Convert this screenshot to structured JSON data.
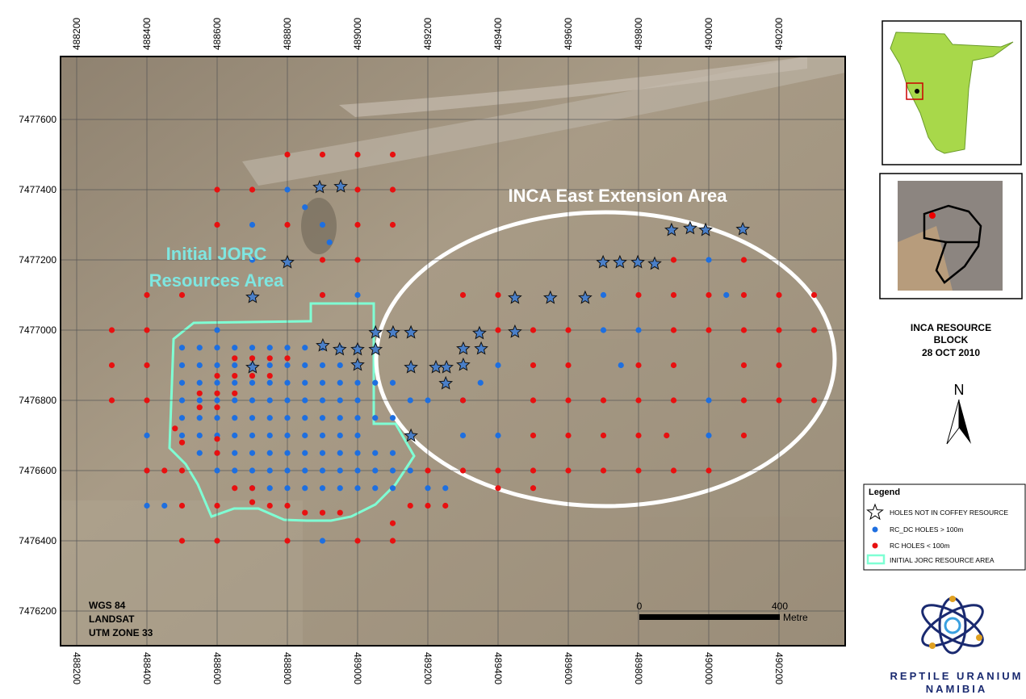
{
  "map": {
    "xticks": [
      488200,
      488400,
      488600,
      488800,
      489000,
      489200,
      489400,
      489600,
      489800,
      490000,
      490200
    ],
    "yticks": [
      7476200,
      7476400,
      7476600,
      7476800,
      7477000,
      7477200,
      7477400,
      7477600
    ],
    "annotations": {
      "east": "INCA East Extension Area",
      "jorc_line1": "Initial JORC",
      "jorc_line2": "Resources Area"
    },
    "projection": [
      "WGS 84",
      "LANDSAT",
      "UTM ZONE 33"
    ],
    "scale_bar": {
      "ticks": [
        0,
        400
      ],
      "unit": "Metre"
    },
    "holes": {
      "blue": {
        "points": [
          [
            488500,
            7476950
          ],
          [
            488550,
            7476950
          ],
          [
            488600,
            7476950
          ],
          [
            488650,
            7476950
          ],
          [
            488700,
            7476950
          ],
          [
            488750,
            7476950
          ],
          [
            488800,
            7476950
          ],
          [
            488850,
            7476950
          ],
          [
            488900,
            7476950
          ],
          [
            488950,
            7476950
          ],
          [
            489000,
            7476950
          ],
          [
            488500,
            7476900
          ],
          [
            488550,
            7476900
          ],
          [
            488600,
            7476900
          ],
          [
            488650,
            7476900
          ],
          [
            488700,
            7476900
          ],
          [
            488750,
            7476900
          ],
          [
            488800,
            7476900
          ],
          [
            488850,
            7476900
          ],
          [
            488900,
            7476900
          ],
          [
            488950,
            7476900
          ],
          [
            489000,
            7476900
          ],
          [
            488500,
            7476850
          ],
          [
            488550,
            7476850
          ],
          [
            488600,
            7476850
          ],
          [
            488650,
            7476850
          ],
          [
            488700,
            7476850
          ],
          [
            488750,
            7476850
          ],
          [
            488800,
            7476850
          ],
          [
            488850,
            7476850
          ],
          [
            488900,
            7476850
          ],
          [
            488950,
            7476850
          ],
          [
            489000,
            7476850
          ],
          [
            488500,
            7476800
          ],
          [
            488550,
            7476800
          ],
          [
            488600,
            7476800
          ],
          [
            488650,
            7476800
          ],
          [
            488700,
            7476800
          ],
          [
            488750,
            7476800
          ],
          [
            488800,
            7476800
          ],
          [
            488850,
            7476800
          ],
          [
            488900,
            7476800
          ],
          [
            488950,
            7476800
          ],
          [
            489000,
            7476800
          ],
          [
            488500,
            7476750
          ],
          [
            488550,
            7476750
          ],
          [
            488600,
            7476750
          ],
          [
            488650,
            7476750
          ],
          [
            488700,
            7476750
          ],
          [
            488750,
            7476750
          ],
          [
            488800,
            7476750
          ],
          [
            488850,
            7476750
          ],
          [
            488900,
            7476750
          ],
          [
            488950,
            7476750
          ],
          [
            489000,
            7476750
          ],
          [
            488500,
            7476700
          ],
          [
            488550,
            7476700
          ],
          [
            488600,
            7476700
          ],
          [
            488650,
            7476700
          ],
          [
            488700,
            7476700
          ],
          [
            488750,
            7476700
          ],
          [
            488800,
            7476700
          ],
          [
            488850,
            7476700
          ],
          [
            488900,
            7476700
          ],
          [
            488950,
            7476700
          ],
          [
            489000,
            7476700
          ],
          [
            488550,
            7476650
          ],
          [
            488600,
            7476650
          ],
          [
            488650,
            7476650
          ],
          [
            488700,
            7476650
          ],
          [
            488750,
            7476650
          ],
          [
            488800,
            7476650
          ],
          [
            488850,
            7476650
          ],
          [
            488900,
            7476650
          ],
          [
            488950,
            7476650
          ],
          [
            489000,
            7476650
          ],
          [
            489050,
            7476650
          ],
          [
            488600,
            7476600
          ],
          [
            488650,
            7476600
          ],
          [
            488700,
            7476600
          ],
          [
            488750,
            7476600
          ],
          [
            488800,
            7476600
          ],
          [
            488850,
            7476600
          ],
          [
            488900,
            7476600
          ],
          [
            488950,
            7476600
          ],
          [
            489000,
            7476600
          ],
          [
            489050,
            7476600
          ],
          [
            489100,
            7476600
          ],
          [
            488700,
            7476550
          ],
          [
            488750,
            7476550
          ],
          [
            488800,
            7476550
          ],
          [
            488850,
            7476550
          ],
          [
            488900,
            7476550
          ],
          [
            488950,
            7476550
          ],
          [
            489000,
            7476550
          ],
          [
            489050,
            7476550
          ],
          [
            489100,
            7476550
          ],
          [
            489050,
            7476850
          ],
          [
            489100,
            7476850
          ],
          [
            489150,
            7476800
          ],
          [
            489200,
            7476800
          ],
          [
            489050,
            7476750
          ],
          [
            489100,
            7476750
          ],
          [
            489100,
            7476650
          ],
          [
            489150,
            7476600
          ],
          [
            489200,
            7476550
          ],
          [
            489250,
            7476550
          ],
          [
            489300,
            7476700
          ],
          [
            489400,
            7476700
          ],
          [
            489400,
            7476900
          ],
          [
            489700,
            7477000
          ],
          [
            489800,
            7477000
          ],
          [
            489750,
            7476900
          ],
          [
            490000,
            7476800
          ],
          [
            490000,
            7476700
          ],
          [
            490000,
            7477200
          ],
          [
            490050,
            7477100
          ],
          [
            489700,
            7477100
          ],
          [
            488900,
            7477100
          ],
          [
            489000,
            7477100
          ],
          [
            488800,
            7477400
          ],
          [
            488850,
            7477350
          ],
          [
            488900,
            7477300
          ],
          [
            488920,
            7477250
          ],
          [
            488700,
            7477300
          ],
          [
            488700,
            7477200
          ],
          [
            488600,
            7477000
          ],
          [
            488400,
            7476700
          ],
          [
            488400,
            7476600
          ],
          [
            488400,
            7476500
          ],
          [
            488450,
            7476500
          ],
          [
            488900,
            7476400
          ],
          [
            489300,
            7476800
          ],
          [
            489350,
            7476850
          ]
        ]
      },
      "red": {
        "points": [
          [
            488800,
            7477500
          ],
          [
            488900,
            7477500
          ],
          [
            489000,
            7477500
          ],
          [
            489100,
            7477500
          ],
          [
            488600,
            7477400
          ],
          [
            488700,
            7477400
          ],
          [
            489000,
            7477400
          ],
          [
            489100,
            7477400
          ],
          [
            488600,
            7477300
          ],
          [
            488800,
            7477300
          ],
          [
            489000,
            7477300
          ],
          [
            489100,
            7477300
          ],
          [
            488900,
            7477200
          ],
          [
            489000,
            7477200
          ],
          [
            488400,
            7477100
          ],
          [
            488500,
            7477100
          ],
          [
            488900,
            7477100
          ],
          [
            488300,
            7477000
          ],
          [
            488400,
            7477000
          ],
          [
            488300,
            7476900
          ],
          [
            488400,
            7476900
          ],
          [
            488300,
            7476800
          ],
          [
            488400,
            7476800
          ],
          [
            488500,
            7476600
          ],
          [
            488450,
            7476600
          ],
          [
            488400,
            7476600
          ],
          [
            488500,
            7476500
          ],
          [
            488600,
            7476500
          ],
          [
            488500,
            7476400
          ],
          [
            488600,
            7476400
          ],
          [
            488800,
            7476400
          ],
          [
            489000,
            7476400
          ],
          [
            489100,
            7476400
          ],
          [
            489100,
            7476450
          ],
          [
            489150,
            7476500
          ],
          [
            489200,
            7476500
          ],
          [
            489250,
            7476500
          ],
          [
            489200,
            7476600
          ],
          [
            489300,
            7476600
          ],
          [
            489400,
            7476600
          ],
          [
            489500,
            7476600
          ],
          [
            489600,
            7476600
          ],
          [
            489700,
            7476600
          ],
          [
            489800,
            7476600
          ],
          [
            489900,
            7476600
          ],
          [
            490000,
            7476600
          ],
          [
            489400,
            7476550
          ],
          [
            489500,
            7476550
          ],
          [
            489300,
            7477100
          ],
          [
            489400,
            7477100
          ],
          [
            489800,
            7477100
          ],
          [
            489900,
            7477100
          ],
          [
            490000,
            7477100
          ],
          [
            490100,
            7477100
          ],
          [
            490200,
            7477100
          ],
          [
            490300,
            7477100
          ],
          [
            489400,
            7477000
          ],
          [
            489500,
            7477000
          ],
          [
            489600,
            7477000
          ],
          [
            489900,
            7477000
          ],
          [
            490000,
            7477000
          ],
          [
            490100,
            7477000
          ],
          [
            490200,
            7477000
          ],
          [
            490300,
            7477000
          ],
          [
            489500,
            7476900
          ],
          [
            489600,
            7476900
          ],
          [
            489800,
            7476900
          ],
          [
            489900,
            7476900
          ],
          [
            490100,
            7476900
          ],
          [
            490200,
            7476900
          ],
          [
            489300,
            7476800
          ],
          [
            489500,
            7476800
          ],
          [
            489600,
            7476800
          ],
          [
            489700,
            7476800
          ],
          [
            489800,
            7476800
          ],
          [
            489900,
            7476800
          ],
          [
            490100,
            7476800
          ],
          [
            490200,
            7476800
          ],
          [
            490300,
            7476800
          ],
          [
            489500,
            7476700
          ],
          [
            489600,
            7476700
          ],
          [
            489700,
            7476700
          ],
          [
            489800,
            7476700
          ],
          [
            489880,
            7476700
          ],
          [
            490100,
            7476700
          ],
          [
            489900,
            7477200
          ],
          [
            490100,
            7477200
          ],
          [
            488650,
            7476920
          ],
          [
            488700,
            7476920
          ],
          [
            488750,
            7476920
          ],
          [
            488800,
            7476920
          ],
          [
            488600,
            7476870
          ],
          [
            488650,
            7476870
          ],
          [
            488700,
            7476870
          ],
          [
            488750,
            7476870
          ],
          [
            488550,
            7476820
          ],
          [
            488600,
            7476820
          ],
          [
            488650,
            7476820
          ],
          [
            488550,
            7476780
          ],
          [
            488600,
            7476780
          ],
          [
            488600,
            7476690
          ],
          [
            488600,
            7476650
          ],
          [
            488650,
            7476550
          ],
          [
            488700,
            7476550
          ],
          [
            488700,
            7476510
          ],
          [
            488750,
            7476500
          ],
          [
            488800,
            7476500
          ],
          [
            488850,
            7476480
          ],
          [
            488900,
            7476480
          ],
          [
            488950,
            7476480
          ],
          [
            488500,
            7476680
          ],
          [
            488480,
            7476720
          ]
        ]
      },
      "star": {
        "points": [
          [
            488892,
            7477407
          ],
          [
            488952,
            7477409
          ],
          [
            488800,
            7477193
          ],
          [
            488701,
            7477094
          ],
          [
            488701,
            7476894
          ],
          [
            488901,
            7476956
          ],
          [
            488949,
            7476945
          ],
          [
            489000,
            7476945
          ],
          [
            489000,
            7476901
          ],
          [
            489051,
            7476993
          ],
          [
            489101,
            7476993
          ],
          [
            489152,
            7476993
          ],
          [
            489051,
            7476945
          ],
          [
            489152,
            7476894
          ],
          [
            489152,
            7476699
          ],
          [
            489223,
            7476894
          ],
          [
            489253,
            7476894
          ],
          [
            489251,
            7476848
          ],
          [
            489301,
            7476947
          ],
          [
            489301,
            7476901
          ],
          [
            489347,
            7476991
          ],
          [
            489352,
            7476947
          ],
          [
            489448,
            7477092
          ],
          [
            489448,
            7476995
          ],
          [
            489549,
            7477092
          ],
          [
            489648,
            7477092
          ],
          [
            489699,
            7477193
          ],
          [
            489747,
            7477193
          ],
          [
            489798,
            7477193
          ],
          [
            489846,
            7477189
          ],
          [
            489894,
            7477285
          ],
          [
            489947,
            7477290
          ],
          [
            489991,
            7477285
          ],
          [
            490097,
            7477287
          ]
        ]
      }
    }
  },
  "sidebar": {
    "block_title": [
      "INCA RESOURCE",
      "BLOCK",
      "28  OCT 2010"
    ],
    "north": "N",
    "legend": {
      "title": "Legend",
      "items": [
        "HOLES NOT IN COFFEY RESOURCE",
        "RC_DC HOLES > 100m",
        "RC HOLES < 100m",
        "INITIAL JORC RESOURCE AREA"
      ]
    },
    "logo": [
      "REPTILE URANIUM",
      "NAMIBIA"
    ]
  }
}
